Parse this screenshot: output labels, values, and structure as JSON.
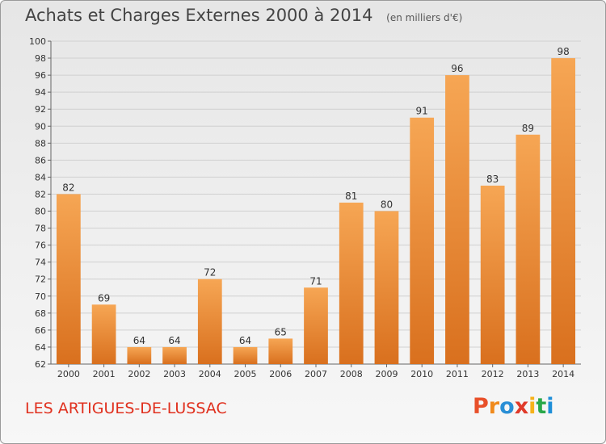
{
  "header": {
    "title": "Achats et Charges Externes 2000 à 2014",
    "unit": "(en milliers d'€)"
  },
  "footer": {
    "location": "LES ARTIGUES-DE-LUSSAC",
    "logo_letters": [
      "P",
      "r",
      "o",
      "x",
      "i",
      "t",
      "i"
    ],
    "logo_colors": [
      "#e8502a",
      "#f08a1c",
      "#2a8fd6",
      "#e03a2a",
      "#f6b21a",
      "#2aa84a",
      "#1e8fd8"
    ]
  },
  "colors": {
    "bar_top": "#f6a654",
    "bar_bottom": "#d9701e",
    "axis": "#666666",
    "grid": "#d0d0d0",
    "text": "#333333",
    "location": "#e0301e"
  },
  "chart_data": {
    "type": "bar",
    "title": "Achats et Charges Externes 2000 à 2014",
    "subtitle": "(en milliers d'€)",
    "xlabel": "",
    "ylabel": "",
    "categories": [
      "2000",
      "2001",
      "2002",
      "2003",
      "2004",
      "2005",
      "2006",
      "2007",
      "2008",
      "2009",
      "2010",
      "2011",
      "2012",
      "2013",
      "2014"
    ],
    "values": [
      82,
      69,
      64,
      64,
      72,
      64,
      65,
      71,
      81,
      80,
      91,
      96,
      83,
      89,
      98
    ],
    "data_labels": [
      "82",
      "69",
      "64",
      "64",
      "72",
      "64",
      "65",
      "71",
      "81",
      "80",
      "91",
      "96",
      "83",
      "89",
      "98"
    ],
    "ylim": [
      62,
      100
    ],
    "yticks": [
      62,
      64,
      66,
      68,
      70,
      72,
      74,
      76,
      78,
      80,
      82,
      84,
      86,
      88,
      90,
      92,
      94,
      96,
      98,
      100
    ],
    "grid": true,
    "legend": "none"
  }
}
